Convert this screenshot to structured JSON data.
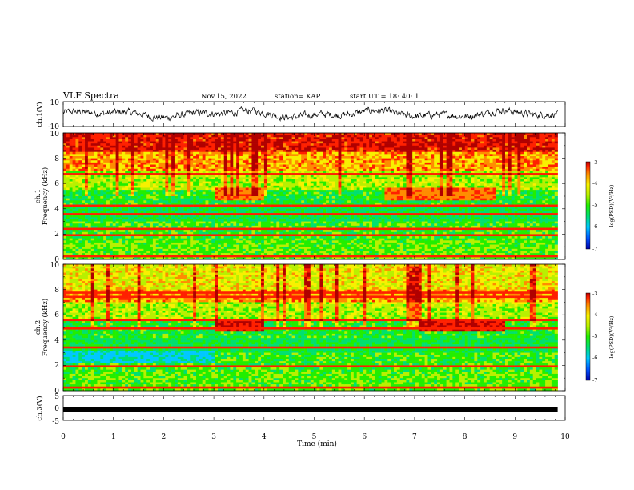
{
  "header": {
    "title": "VLF Spectra",
    "date": "Nov.15, 2022",
    "station": "station= KAP",
    "start": "start  UT =   18: 40: 1"
  },
  "colors": {
    "colormap": [
      "#0000a8",
      "#0050ff",
      "#00c8ff",
      "#00e070",
      "#22ee00",
      "#b8f000",
      "#f8f000",
      "#ff8c00",
      "#ff2000",
      "#b00000"
    ],
    "trace": "#000000",
    "axis": "#000000"
  },
  "chart_data": [
    {
      "type": "line",
      "panel": "ch1-waveform",
      "xlabel": "",
      "ylabel": "ch.1(V)",
      "ylim": [
        -10,
        10
      ],
      "yticklabels": [
        "10",
        "-10"
      ],
      "x_range_min": [
        0,
        9.85
      ],
      "description_values": "noisy waveform oscillating roughly between -4 and +4 V"
    },
    {
      "type": "heatmap",
      "panel": "ch1-spectrogram",
      "ylabel": "ch.1\nFrequency (kHz)",
      "ylim": [
        0,
        10
      ],
      "yticklabels": [
        "0",
        "2",
        "4",
        "6",
        "8",
        "10"
      ],
      "colorbar": {
        "label": "log(PSD)(V²/Hz)",
        "ticks": [
          "-3",
          "-4",
          "-5",
          "-6",
          "-7"
        ],
        "range": [
          -7,
          -3
        ]
      },
      "x_range_min": [
        0,
        9.85
      ]
    },
    {
      "type": "heatmap",
      "panel": "ch2-spectrogram",
      "ylabel": "ch.2\nFrequency (kHz)",
      "ylim": [
        0,
        10
      ],
      "yticklabels": [
        "0",
        "2",
        "4",
        "6",
        "8",
        "10"
      ],
      "colorbar": {
        "label": "log(PSD)(V²/Hz)",
        "ticks": [
          "-3",
          "-4",
          "-5",
          "-6",
          "-7"
        ],
        "range": [
          -7,
          -3
        ]
      },
      "x_range_min": [
        0,
        9.85
      ]
    },
    {
      "type": "line",
      "panel": "ch3-waveform",
      "ylabel": "ch.3(V)",
      "ylim": [
        -5,
        5
      ],
      "yticklabels": [
        "5",
        "0",
        "-5"
      ],
      "values_constant_v": -1.6,
      "x_range_min": [
        0,
        9.85
      ]
    }
  ],
  "xaxis": {
    "label": "Time (min)",
    "ticks": [
      "0",
      "1",
      "2",
      "3",
      "4",
      "5",
      "6",
      "7",
      "8",
      "9",
      "10"
    ],
    "xlim": [
      0,
      10
    ]
  },
  "axis_labels": {
    "ch1_wave": "ch.1(V)",
    "ch1_spec_a": "ch.1",
    "ch1_spec_b": "Frequency (kHz)",
    "ch2_spec_a": "ch.2",
    "ch2_spec_b": "Frequency (kHz)",
    "ch3_wave": "ch.3(V)",
    "cb1": "log(PSD)(V²/Hz)",
    "cb2": "log(PSD)(V²/Hz)"
  },
  "ticks": {
    "w1": [
      "10",
      "-10"
    ],
    "freq": [
      "0",
      "2",
      "4",
      "6",
      "8",
      "10"
    ],
    "w3": [
      "5",
      "0",
      "-5"
    ],
    "cb": [
      "-3",
      "-4",
      "-5",
      "-6",
      "-7"
    ]
  }
}
